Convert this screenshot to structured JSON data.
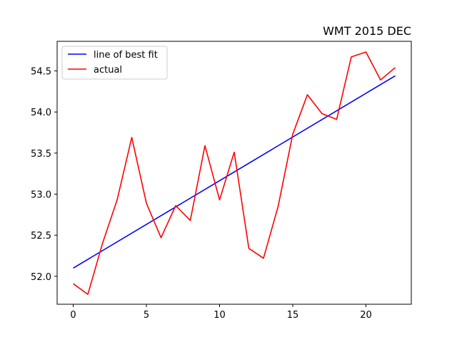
{
  "chart_data": {
    "type": "line",
    "title": "WMT 2015 DEC",
    "xlabel": "",
    "ylabel": "",
    "xlim": [
      -1.1,
      23.1
    ],
    "ylim": [
      51.66,
      54.86
    ],
    "x_ticks": [
      0,
      5,
      10,
      15,
      20
    ],
    "y_ticks": [
      52.0,
      52.5,
      53.0,
      53.5,
      54.0,
      54.5
    ],
    "y_tick_labels": [
      "52.0",
      "52.5",
      "53.0",
      "53.5",
      "54.0",
      "54.5"
    ],
    "grid": false,
    "legend_placement": "upper-left",
    "series": [
      {
        "name": "line of best fit",
        "color": "#0000ff",
        "x": [
          0,
          22
        ],
        "y": [
          52.1,
          54.44
        ]
      },
      {
        "name": "actual",
        "color": "#ff0000",
        "x": [
          0,
          1,
          2,
          3,
          4,
          5,
          6,
          7,
          8,
          9,
          10,
          11,
          12,
          13,
          14,
          15,
          16,
          17,
          18,
          19,
          20,
          21,
          22
        ],
        "y": [
          51.91,
          51.78,
          52.4,
          52.93,
          53.69,
          52.89,
          52.47,
          52.86,
          52.68,
          53.59,
          52.93,
          53.51,
          52.34,
          52.22,
          52.85,
          53.73,
          54.21,
          53.98,
          53.91,
          54.67,
          54.73,
          54.39,
          54.54
        ]
      }
    ]
  }
}
